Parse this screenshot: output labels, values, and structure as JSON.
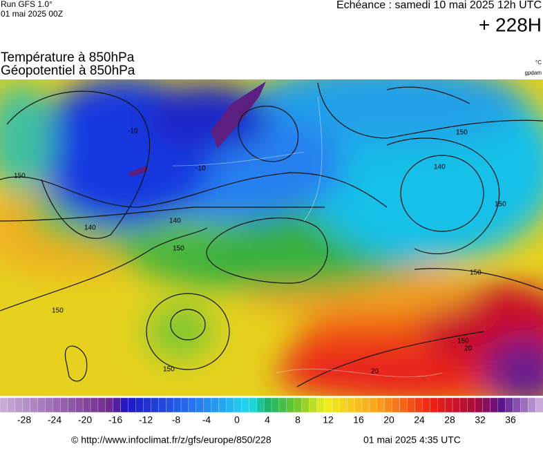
{
  "header": {
    "run": "Run GFS 1.0°",
    "run_date": "01 mai 2025 00Z",
    "echeance": "Echéance : samedi 10 mai 2025 12h UTC",
    "lead": "+ 228H",
    "parameters": [
      "Température à 850hPa",
      "Géopotentiel à 850hPa"
    ],
    "units": [
      "°C",
      "gpdam"
    ]
  },
  "map": {
    "contour_labels": [
      "150",
      "140",
      "150",
      "140",
      "150",
      "150",
      "150",
      "150",
      "150",
      "140",
      "-10",
      "-10",
      "20",
      "20",
      "150"
    ]
  },
  "colorbar": {
    "ticks": [
      -28,
      -24,
      -20,
      -16,
      -12,
      -8,
      -4,
      0,
      4,
      8,
      12,
      16,
      20,
      24,
      28,
      32,
      36
    ]
  },
  "footer": {
    "source": "© http://www.infoclimat.fr/z/gfs/europe/850/228",
    "generated": "01 mai 2025  4:35 UTC"
  }
}
